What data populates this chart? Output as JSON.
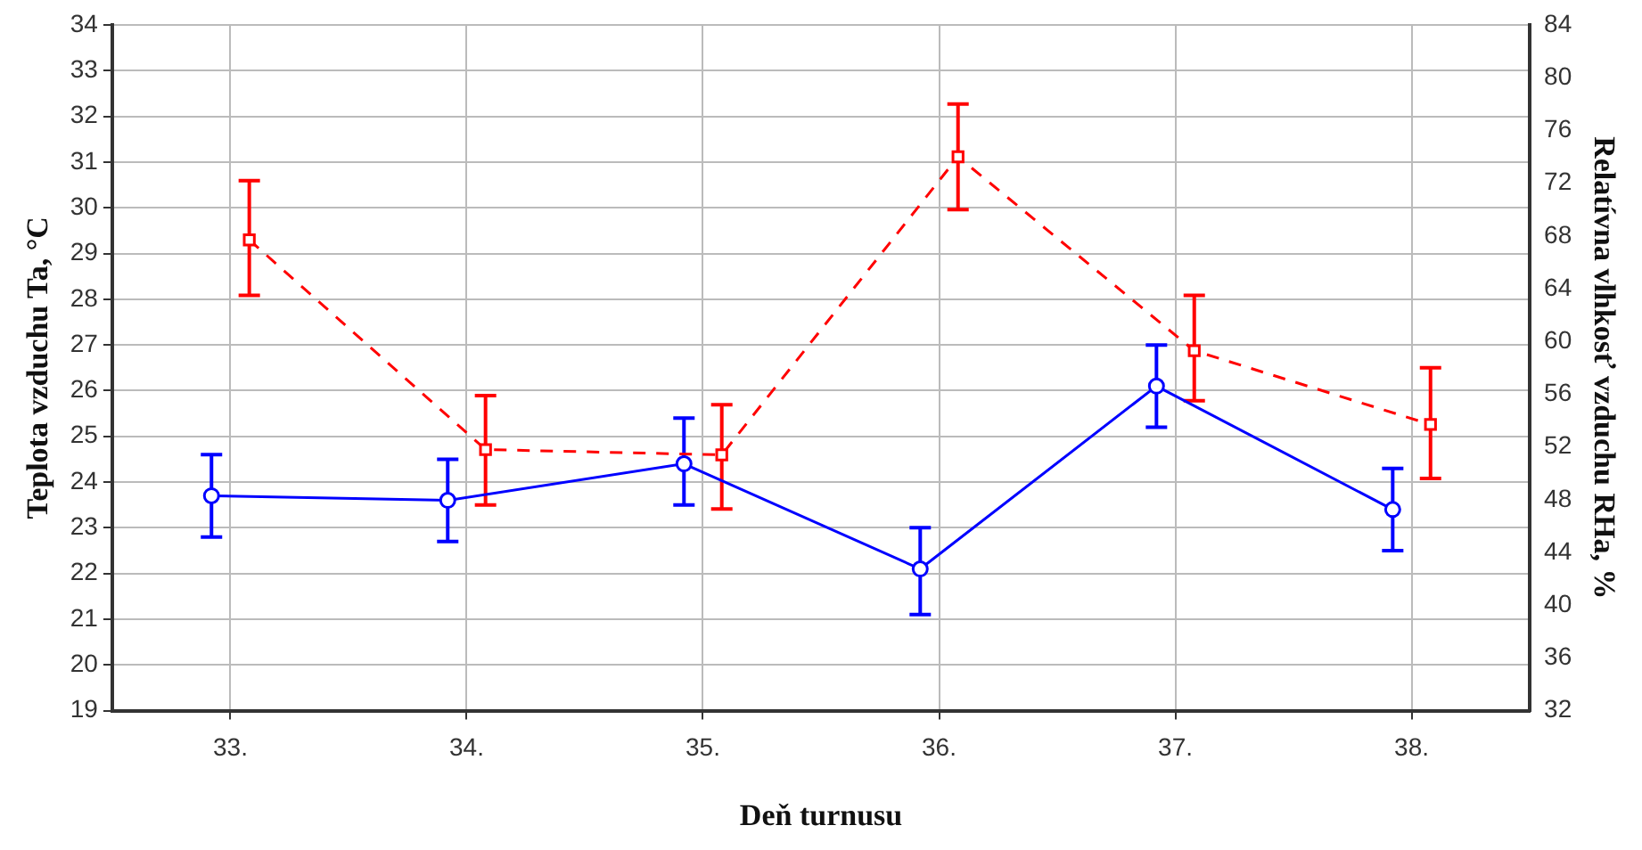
{
  "chart_data": {
    "type": "line",
    "xlabel": "Deň turnusu",
    "ylabel": "Teplota vzduchu Ta, °C",
    "y2label": "Relatívna vlhkosť vzduchu RHa, %",
    "categories": [
      "33.",
      "34.",
      "35.",
      "36.",
      "37.",
      "38."
    ],
    "ylim": [
      19,
      34
    ],
    "yticks": [
      19,
      20,
      21,
      22,
      23,
      24,
      25,
      26,
      27,
      28,
      29,
      30,
      31,
      32,
      33,
      34
    ],
    "y2lim": [
      32,
      84
    ],
    "y2ticks": [
      32,
      36,
      40,
      44,
      48,
      52,
      56,
      60,
      64,
      68,
      72,
      76,
      80,
      84
    ],
    "grid": true,
    "legend": false,
    "series": [
      {
        "color": "#0000ff",
        "marker": "circle",
        "line_style": "solid",
        "values": [
          23.7,
          23.6,
          24.4,
          22.1,
          26.1,
          23.4
        ],
        "errors": [
          [
            22.8,
            24.6
          ],
          [
            22.7,
            24.5
          ],
          [
            23.5,
            25.4
          ],
          [
            21.1,
            23.0
          ],
          [
            25.2,
            27.0
          ],
          [
            22.5,
            24.3
          ]
        ]
      },
      {
        "color": "#ff0000",
        "marker": "square",
        "line_style": "dashed",
        "axis": "y2",
        "values": [
          67.7,
          51.8,
          51.4,
          74,
          59.3,
          53.7
        ],
        "errors": [
          [
            63.5,
            72.2
          ],
          [
            47.6,
            55.9
          ],
          [
            47.3,
            55.2
          ],
          [
            70,
            78
          ],
          [
            55.5,
            63.5
          ],
          [
            49.6,
            58
          ]
        ]
      }
    ]
  }
}
